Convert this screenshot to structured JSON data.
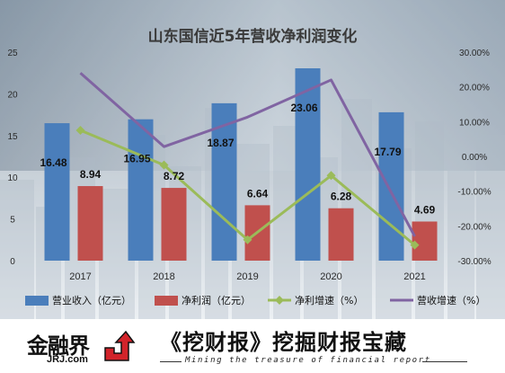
{
  "chart_data": {
    "type": "bar",
    "title": "山东国信近5年营收净利润变化",
    "categories": [
      "2017",
      "2018",
      "2019",
      "2020",
      "2021"
    ],
    "series": [
      {
        "name": "营业收入（亿元）",
        "kind": "bar",
        "axis": "left",
        "color": "#4a7ebb",
        "values": [
          16.48,
          16.95,
          18.87,
          23.06,
          17.79
        ],
        "labels": [
          "16.48",
          "16.95",
          "18.87",
          "23.06",
          "17.79"
        ]
      },
      {
        "name": "净利润（亿元）",
        "kind": "bar",
        "axis": "left",
        "color": "#c0504d",
        "values": [
          8.94,
          8.72,
          6.64,
          6.28,
          4.69
        ],
        "labels": [
          "8.94",
          "8.72",
          "6.64",
          "6.28",
          "4.69"
        ]
      },
      {
        "name": "净利增速（%）",
        "kind": "line",
        "axis": "right",
        "color": "#9bbb59",
        "values": [
          7.5,
          -2.5,
          -24.0,
          -5.5,
          -25.5
        ]
      },
      {
        "name": "营收增速（%）",
        "kind": "line",
        "axis": "right",
        "color": "#8064a2",
        "values": [
          24.0,
          2.8,
          11.3,
          22.0,
          -23.0
        ]
      }
    ],
    "left_axis": {
      "ylim": [
        0,
        25
      ],
      "ticks": [
        "0",
        "5",
        "10",
        "15",
        "20",
        "25"
      ]
    },
    "right_axis": {
      "ylim": [
        -30,
        30
      ],
      "ticks": [
        "-30.00%",
        "-20.00%",
        "-10.00%",
        "0.00%",
        "10.00%",
        "20.00%",
        "30.00%"
      ]
    },
    "legend_placement": "bottom",
    "grid": false
  },
  "footer": {
    "brand_name": "金融界",
    "brand_url": "JRJ.com",
    "slogan": "《挖财报》挖掘财报宝藏",
    "slogan_sub": "Mining the treasure of financial report"
  },
  "colors": {
    "background_dark": "#5d6f80",
    "revenue": "#4a7ebb",
    "profit": "#c0504d",
    "profit_growth": "#9bbb59",
    "revenue_growth": "#8064a2"
  }
}
